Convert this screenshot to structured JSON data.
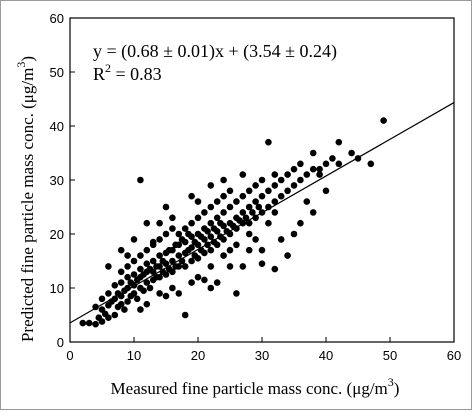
{
  "chart_data": {
    "type": "scatter",
    "xlabel_main": "Measured fine particle mass conc. (μg/m",
    "xlabel_sup": "3",
    "xlabel_close": ")",
    "ylabel_main": "Predicted fine particle mass conc. (μg/m",
    "ylabel_sup": "3",
    "ylabel_close": ")",
    "xlim": [
      0,
      60
    ],
    "ylim": [
      0,
      60
    ],
    "xticks": [
      0,
      10,
      20,
      30,
      40,
      50,
      60
    ],
    "yticks": [
      0,
      10,
      20,
      30,
      40,
      50,
      60
    ],
    "grid": false,
    "annotations": {
      "equation": "y = (0.68 ± 0.01)x + (3.54 ± 0.24)",
      "r2_prefix": "R",
      "r2_sup": "2",
      "r2_value": " = 0.83"
    },
    "fit_line": {
      "slope": 0.68,
      "intercept": 3.54
    },
    "point_color": "#000000",
    "points": [
      [
        2,
        3.5
      ],
      [
        3,
        3.5
      ],
      [
        4,
        3.3
      ],
      [
        4,
        6.5
      ],
      [
        4.5,
        4.5
      ],
      [
        5,
        3.8
      ],
      [
        5,
        6
      ],
      [
        5,
        8
      ],
      [
        5.5,
        5.2
      ],
      [
        6,
        4.5
      ],
      [
        6,
        6.8
      ],
      [
        6,
        9
      ],
      [
        6.5,
        7.5
      ],
      [
        7,
        5
      ],
      [
        7,
        8
      ],
      [
        7,
        10.5
      ],
      [
        7.5,
        6.5
      ],
      [
        7.5,
        9
      ],
      [
        8,
        7
      ],
      [
        8,
        8.5
      ],
      [
        8,
        11
      ],
      [
        8,
        13
      ],
      [
        8.5,
        6
      ],
      [
        8.5,
        9.5
      ],
      [
        9,
        7.5
      ],
      [
        9,
        10
      ],
      [
        9,
        12
      ],
      [
        9,
        14
      ],
      [
        9.5,
        8.5
      ],
      [
        9.5,
        11
      ],
      [
        10,
        9
      ],
      [
        10,
        10.5
      ],
      [
        10,
        12.5
      ],
      [
        10,
        15
      ],
      [
        10.5,
        8
      ],
      [
        10.5,
        11.5
      ],
      [
        11,
        10
      ],
      [
        11,
        12
      ],
      [
        11,
        13.5
      ],
      [
        11,
        16
      ],
      [
        11.5,
        9.5
      ],
      [
        11.5,
        12.5
      ],
      [
        12,
        11
      ],
      [
        12,
        13
      ],
      [
        12,
        14.5
      ],
      [
        12,
        17
      ],
      [
        12.5,
        10
      ],
      [
        12.5,
        13.5
      ],
      [
        13,
        11.5
      ],
      [
        13,
        13
      ],
      [
        13,
        15
      ],
      [
        13,
        18
      ],
      [
        13.5,
        12
      ],
      [
        13.5,
        14
      ],
      [
        14,
        12
      ],
      [
        14,
        14
      ],
      [
        14,
        16
      ],
      [
        14,
        19
      ],
      [
        14.5,
        13
      ],
      [
        14.5,
        15
      ],
      [
        15,
        12.5
      ],
      [
        15,
        14.5
      ],
      [
        15,
        16.5
      ],
      [
        15,
        20
      ],
      [
        15.5,
        13.5
      ],
      [
        15.5,
        17
      ],
      [
        16,
        13
      ],
      [
        16,
        15
      ],
      [
        16,
        17
      ],
      [
        16,
        21
      ],
      [
        16.5,
        14
      ],
      [
        16.5,
        18
      ],
      [
        17,
        14
      ],
      [
        17,
        16
      ],
      [
        17,
        18
      ],
      [
        17,
        20
      ],
      [
        17.5,
        15
      ],
      [
        17.5,
        19
      ],
      [
        18,
        14
      ],
      [
        18,
        16.5
      ],
      [
        18,
        18.5
      ],
      [
        18,
        21
      ],
      [
        18.5,
        17
      ],
      [
        18.5,
        20
      ],
      [
        19,
        15
      ],
      [
        19,
        17.5
      ],
      [
        19,
        19.5
      ],
      [
        19,
        22
      ],
      [
        19.5,
        16
      ],
      [
        19.5,
        18.5
      ],
      [
        20,
        15.5
      ],
      [
        20,
        18
      ],
      [
        20,
        20
      ],
      [
        20,
        23
      ],
      [
        20.5,
        17
      ],
      [
        20.5,
        19.5
      ],
      [
        21,
        16.5
      ],
      [
        21,
        19
      ],
      [
        21,
        21
      ],
      [
        21,
        24
      ],
      [
        21.5,
        18
      ],
      [
        21.5,
        20.5
      ],
      [
        22,
        17
      ],
      [
        22,
        19.5
      ],
      [
        22,
        22
      ],
      [
        22,
        25
      ],
      [
        22.5,
        18.5
      ],
      [
        22.5,
        21
      ],
      [
        23,
        18
      ],
      [
        23,
        20.5
      ],
      [
        23,
        23
      ],
      [
        23,
        26
      ],
      [
        23.5,
        19.5
      ],
      [
        23.5,
        22
      ],
      [
        24,
        19
      ],
      [
        24,
        21.5
      ],
      [
        24,
        24
      ],
      [
        24,
        27
      ],
      [
        24.5,
        20.5
      ],
      [
        25,
        20
      ],
      [
        25,
        22
      ],
      [
        25,
        25
      ],
      [
        25,
        28
      ],
      [
        25.5,
        21.5
      ],
      [
        26,
        21
      ],
      [
        26,
        23
      ],
      [
        26,
        26
      ],
      [
        26.5,
        22.5
      ],
      [
        27,
        22
      ],
      [
        27,
        24
      ],
      [
        27,
        27
      ],
      [
        27.5,
        23
      ],
      [
        28,
        22
      ],
      [
        28,
        25
      ],
      [
        28,
        28
      ],
      [
        28.5,
        24
      ],
      [
        29,
        23
      ],
      [
        29,
        26
      ],
      [
        29,
        29
      ],
      [
        29.5,
        25
      ],
      [
        30,
        24
      ],
      [
        30,
        27
      ],
      [
        30,
        30
      ],
      [
        31,
        25
      ],
      [
        31,
        28
      ],
      [
        32,
        26
      ],
      [
        32,
        29
      ],
      [
        32,
        31
      ],
      [
        33,
        27
      ],
      [
        33,
        30
      ],
      [
        34,
        28
      ],
      [
        34,
        31
      ],
      [
        35,
        29
      ],
      [
        35,
        32
      ],
      [
        36,
        30
      ],
      [
        36,
        33
      ],
      [
        37,
        31
      ],
      [
        38,
        32
      ],
      [
        38,
        35
      ],
      [
        39,
        32
      ],
      [
        40,
        33
      ],
      [
        41,
        34
      ],
      [
        42,
        33
      ],
      [
        42,
        37
      ],
      [
        44,
        35
      ],
      [
        45,
        34
      ],
      [
        47,
        33
      ],
      [
        49,
        41
      ],
      [
        11,
        30
      ],
      [
        8,
        17
      ],
      [
        6,
        14
      ],
      [
        10,
        19
      ],
      [
        12,
        22
      ],
      [
        15,
        25
      ],
      [
        14,
        22
      ],
      [
        13,
        18.5
      ],
      [
        16,
        23
      ],
      [
        9,
        16
      ],
      [
        31,
        37
      ],
      [
        27,
        31
      ],
      [
        19,
        27
      ],
      [
        24,
        30
      ],
      [
        22,
        29
      ],
      [
        20,
        26
      ],
      [
        18,
        5
      ],
      [
        22,
        10
      ],
      [
        23,
        11
      ],
      [
        21,
        11.5
      ],
      [
        17,
        9
      ],
      [
        25,
        14
      ],
      [
        26,
        9
      ],
      [
        30,
        14.5
      ],
      [
        32,
        13.5
      ],
      [
        28,
        17
      ],
      [
        34,
        16
      ],
      [
        29,
        19
      ],
      [
        30,
        17
      ],
      [
        33,
        19
      ],
      [
        36,
        22
      ],
      [
        35,
        20
      ],
      [
        38,
        24
      ],
      [
        37,
        26
      ],
      [
        40,
        28
      ],
      [
        39,
        31
      ],
      [
        16,
        10
      ],
      [
        15,
        8.5
      ],
      [
        14,
        9
      ],
      [
        19,
        11
      ],
      [
        12,
        7
      ],
      [
        11,
        6
      ],
      [
        20,
        12
      ],
      [
        24,
        16
      ],
      [
        27,
        14
      ],
      [
        22,
        14
      ],
      [
        25,
        17
      ],
      [
        26,
        18
      ],
      [
        28,
        20
      ],
      [
        31,
        22
      ],
      [
        32,
        24
      ]
    ]
  }
}
